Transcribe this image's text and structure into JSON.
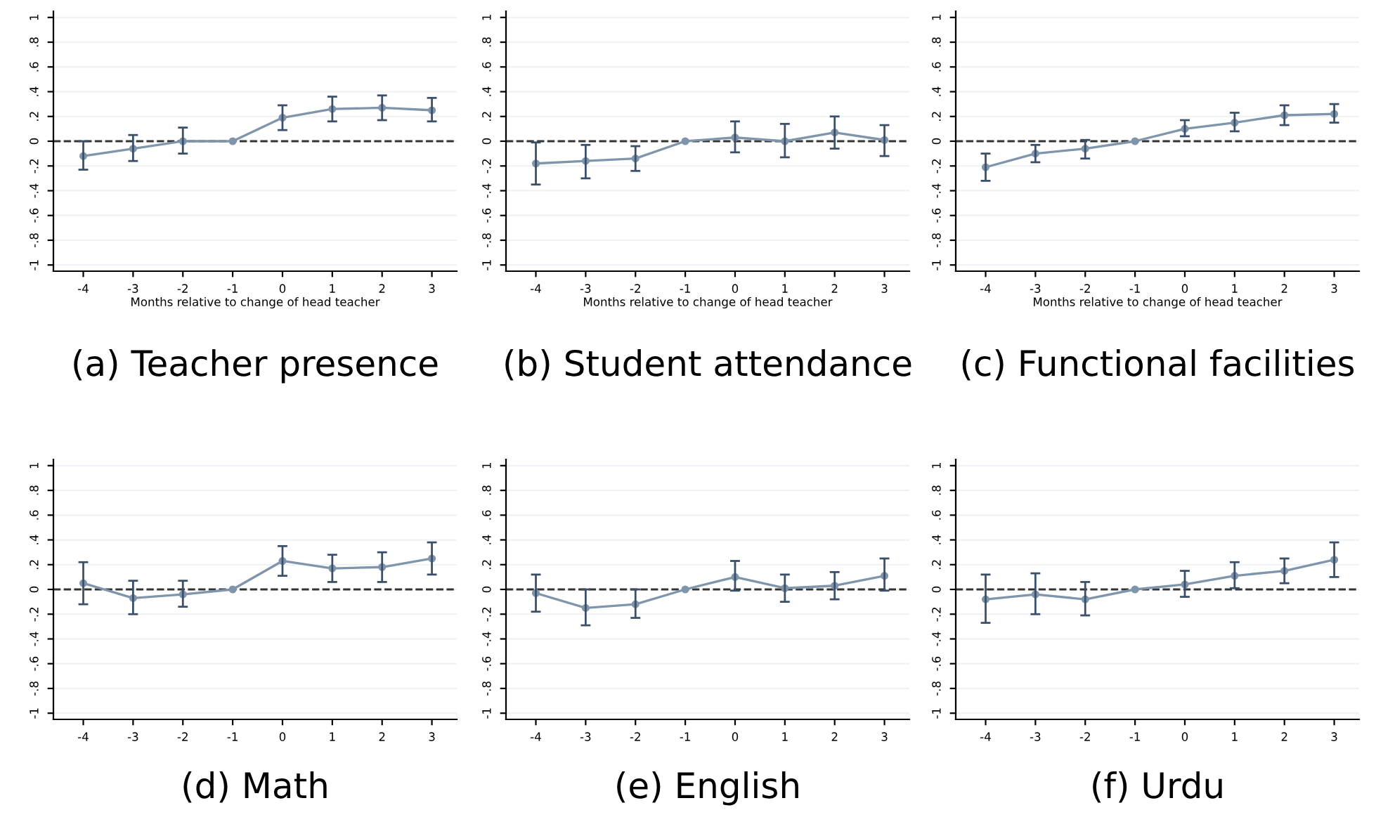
{
  "chart_data": [
    {
      "type": "line",
      "title": "(a) Teacher presence",
      "xlabel": "Months relative to change of head teacher",
      "x": [
        -4,
        -3,
        -2,
        -1,
        0,
        1,
        2,
        3
      ],
      "xlim": [
        -4.6,
        3.5
      ],
      "xticks": [
        -4,
        -3,
        -2,
        -1,
        0,
        1,
        2,
        3
      ],
      "ylim": [
        -1.05,
        1.05
      ],
      "yticks": [
        {
          "value": -1,
          "label": "-1"
        },
        {
          "value": -0.8,
          "label": "-.8"
        },
        {
          "value": -0.6,
          "label": "-.6"
        },
        {
          "value": -0.4,
          "label": "-.4"
        },
        {
          "value": -0.2,
          "label": "-.2"
        },
        0,
        {
          "value": 0.2,
          "label": ".2"
        },
        {
          "value": 0.4,
          "label": ".4"
        },
        {
          "value": 0.6,
          "label": ".6"
        },
        {
          "value": 0.8,
          "label": ".8"
        },
        1
      ],
      "grid": "y",
      "marker": "circle",
      "line_style": "solid",
      "ref_lines": [
        {
          "axis": "y",
          "value": 0,
          "color": "#333333",
          "line_style": "dashed"
        }
      ],
      "series": [
        {
          "color": "#7f95ab",
          "values": [
            -0.12,
            -0.06,
            0,
            0,
            0.19,
            0.26,
            0.27,
            0.25
          ],
          "errors": [
            [
              -0.23,
              0
            ],
            [
              -0.16,
              0.05
            ],
            [
              -0.1,
              0.11
            ],
            null,
            [
              0.09,
              0.29
            ],
            [
              0.16,
              0.36
            ],
            [
              0.17,
              0.37
            ],
            [
              0.16,
              0.35
            ]
          ]
        }
      ]
    },
    {
      "type": "line",
      "title": "(b) Student attendance",
      "xlabel": "Months relative to change of head teacher",
      "x": [
        -4,
        -3,
        -2,
        -1,
        0,
        1,
        2,
        3
      ],
      "xlim": [
        -4.6,
        3.5
      ],
      "xticks": [
        -4,
        -3,
        -2,
        -1,
        0,
        1,
        2,
        3
      ],
      "ylim": [
        -1.05,
        1.05
      ],
      "yticks": [
        {
          "value": -1,
          "label": "-1"
        },
        {
          "value": -0.8,
          "label": "-.8"
        },
        {
          "value": -0.6,
          "label": "-.6"
        },
        {
          "value": -0.4,
          "label": "-.4"
        },
        {
          "value": -0.2,
          "label": "-.2"
        },
        0,
        {
          "value": 0.2,
          "label": ".2"
        },
        {
          "value": 0.4,
          "label": ".4"
        },
        {
          "value": 0.6,
          "label": ".6"
        },
        {
          "value": 0.8,
          "label": ".8"
        },
        1
      ],
      "grid": "y",
      "marker": "circle",
      "line_style": "solid",
      "ref_lines": [
        {
          "axis": "y",
          "value": 0,
          "color": "#333333",
          "line_style": "dashed"
        }
      ],
      "series": [
        {
          "color": "#7f95ab",
          "values": [
            -0.18,
            -0.16,
            -0.14,
            0,
            0.03,
            0,
            0.07,
            0.01
          ],
          "errors": [
            [
              -0.35,
              -0.01
            ],
            [
              -0.3,
              -0.03
            ],
            [
              -0.24,
              -0.04
            ],
            null,
            [
              -0.09,
              0.16
            ],
            [
              -0.13,
              0.14
            ],
            [
              -0.06,
              0.2
            ],
            [
              -0.12,
              0.13
            ]
          ]
        }
      ]
    },
    {
      "type": "line",
      "title": "(c) Functional facilities",
      "xlabel": "Months relative to change of head teacher",
      "x": [
        -4,
        -3,
        -2,
        -1,
        0,
        1,
        2,
        3
      ],
      "xlim": [
        -4.6,
        3.5
      ],
      "xticks": [
        -4,
        -3,
        -2,
        -1,
        0,
        1,
        2,
        3
      ],
      "ylim": [
        -1.05,
        1.05
      ],
      "yticks": [
        {
          "value": -1,
          "label": "-1"
        },
        {
          "value": -0.8,
          "label": "-.8"
        },
        {
          "value": -0.6,
          "label": "-.6"
        },
        {
          "value": -0.4,
          "label": "-.4"
        },
        {
          "value": -0.2,
          "label": "-.2"
        },
        0,
        {
          "value": 0.2,
          "label": ".2"
        },
        {
          "value": 0.4,
          "label": ".4"
        },
        {
          "value": 0.6,
          "label": ".6"
        },
        {
          "value": 0.8,
          "label": ".8"
        },
        1
      ],
      "grid": "y",
      "marker": "circle",
      "line_style": "solid",
      "ref_lines": [
        {
          "axis": "y",
          "value": 0,
          "color": "#333333",
          "line_style": "dashed"
        }
      ],
      "series": [
        {
          "color": "#7f95ab",
          "values": [
            -0.21,
            -0.1,
            -0.06,
            0,
            0.1,
            0.15,
            0.21,
            0.22
          ],
          "errors": [
            [
              -0.32,
              -0.1
            ],
            [
              -0.17,
              -0.03
            ],
            [
              -0.14,
              0.01
            ],
            null,
            [
              0.04,
              0.17
            ],
            [
              0.08,
              0.23
            ],
            [
              0.13,
              0.29
            ],
            [
              0.15,
              0.3
            ]
          ]
        }
      ]
    },
    {
      "type": "line",
      "title": "(d) Math",
      "x": [
        -4,
        -3,
        -2,
        -1,
        0,
        1,
        2,
        3
      ],
      "xlim": [
        -4.6,
        3.5
      ],
      "xticks": [
        -4,
        -3,
        -2,
        -1,
        0,
        1,
        2,
        3
      ],
      "ylim": [
        -1.05,
        1.05
      ],
      "yticks": [
        {
          "value": -1,
          "label": "-1"
        },
        {
          "value": -0.8,
          "label": "-.8"
        },
        {
          "value": -0.6,
          "label": "-.6"
        },
        {
          "value": -0.4,
          "label": "-.4"
        },
        {
          "value": -0.2,
          "label": "-.2"
        },
        0,
        {
          "value": 0.2,
          "label": ".2"
        },
        {
          "value": 0.4,
          "label": ".4"
        },
        {
          "value": 0.6,
          "label": ".6"
        },
        {
          "value": 0.8,
          "label": ".8"
        },
        1
      ],
      "grid": "y",
      "marker": "circle",
      "line_style": "solid",
      "ref_lines": [
        {
          "axis": "y",
          "value": 0,
          "color": "#333333",
          "line_style": "dashed"
        }
      ],
      "series": [
        {
          "color": "#7f95ab",
          "values": [
            0.05,
            -0.07,
            -0.04,
            0,
            0.23,
            0.17,
            0.18,
            0.25
          ],
          "errors": [
            [
              -0.12,
              0.22
            ],
            [
              -0.2,
              0.07
            ],
            [
              -0.14,
              0.07
            ],
            null,
            [
              0.11,
              0.35
            ],
            [
              0.06,
              0.28
            ],
            [
              0.06,
              0.3
            ],
            [
              0.12,
              0.38
            ]
          ]
        }
      ]
    },
    {
      "type": "line",
      "title": "(e) English",
      "x": [
        -4,
        -3,
        -2,
        -1,
        0,
        1,
        2,
        3
      ],
      "xlim": [
        -4.6,
        3.5
      ],
      "xticks": [
        -4,
        -3,
        -2,
        -1,
        0,
        1,
        2,
        3
      ],
      "ylim": [
        -1.05,
        1.05
      ],
      "yticks": [
        {
          "value": -1,
          "label": "-1"
        },
        {
          "value": -0.8,
          "label": "-.8"
        },
        {
          "value": -0.6,
          "label": "-.6"
        },
        {
          "value": -0.4,
          "label": "-.4"
        },
        {
          "value": -0.2,
          "label": "-.2"
        },
        0,
        {
          "value": 0.2,
          "label": ".2"
        },
        {
          "value": 0.4,
          "label": ".4"
        },
        {
          "value": 0.6,
          "label": ".6"
        },
        {
          "value": 0.8,
          "label": ".8"
        },
        1
      ],
      "grid": "y",
      "marker": "circle",
      "line_style": "solid",
      "ref_lines": [
        {
          "axis": "y",
          "value": 0,
          "color": "#333333",
          "line_style": "dashed"
        }
      ],
      "series": [
        {
          "color": "#7f95ab",
          "values": [
            -0.03,
            -0.15,
            -0.12,
            0,
            0.1,
            0.01,
            0.03,
            0.11
          ],
          "errors": [
            [
              -0.18,
              0.12
            ],
            [
              -0.29,
              0
            ],
            [
              -0.23,
              0
            ],
            null,
            [
              -0.01,
              0.23
            ],
            [
              -0.1,
              0.12
            ],
            [
              -0.08,
              0.14
            ],
            [
              -0.01,
              0.25
            ]
          ]
        }
      ]
    },
    {
      "type": "line",
      "title": "(f) Urdu",
      "x": [
        -4,
        -3,
        -2,
        -1,
        0,
        1,
        2,
        3
      ],
      "xlim": [
        -4.6,
        3.5
      ],
      "xticks": [
        -4,
        -3,
        -2,
        -1,
        0,
        1,
        2,
        3
      ],
      "ylim": [
        -1.05,
        1.05
      ],
      "yticks": [
        {
          "value": -1,
          "label": "-1"
        },
        {
          "value": -0.8,
          "label": "-.8"
        },
        {
          "value": -0.6,
          "label": "-.6"
        },
        {
          "value": -0.4,
          "label": "-.4"
        },
        {
          "value": -0.2,
          "label": "-.2"
        },
        0,
        {
          "value": 0.2,
          "label": ".2"
        },
        {
          "value": 0.4,
          "label": ".4"
        },
        {
          "value": 0.6,
          "label": ".6"
        },
        {
          "value": 0.8,
          "label": ".8"
        },
        1
      ],
      "grid": "y",
      "marker": "circle",
      "line_style": "solid",
      "ref_lines": [
        {
          "axis": "y",
          "value": 0,
          "color": "#333333",
          "line_style": "dashed"
        }
      ],
      "series": [
        {
          "color": "#7f95ab",
          "values": [
            -0.08,
            -0.04,
            -0.08,
            0,
            0.04,
            0.11,
            0.15,
            0.24
          ],
          "errors": [
            [
              -0.27,
              0.12
            ],
            [
              -0.2,
              0.13
            ],
            [
              -0.21,
              0.06
            ],
            null,
            [
              -0.06,
              0.15
            ],
            [
              0.01,
              0.22
            ],
            [
              0.05,
              0.25
            ],
            [
              0.1,
              0.38
            ]
          ]
        }
      ]
    }
  ]
}
